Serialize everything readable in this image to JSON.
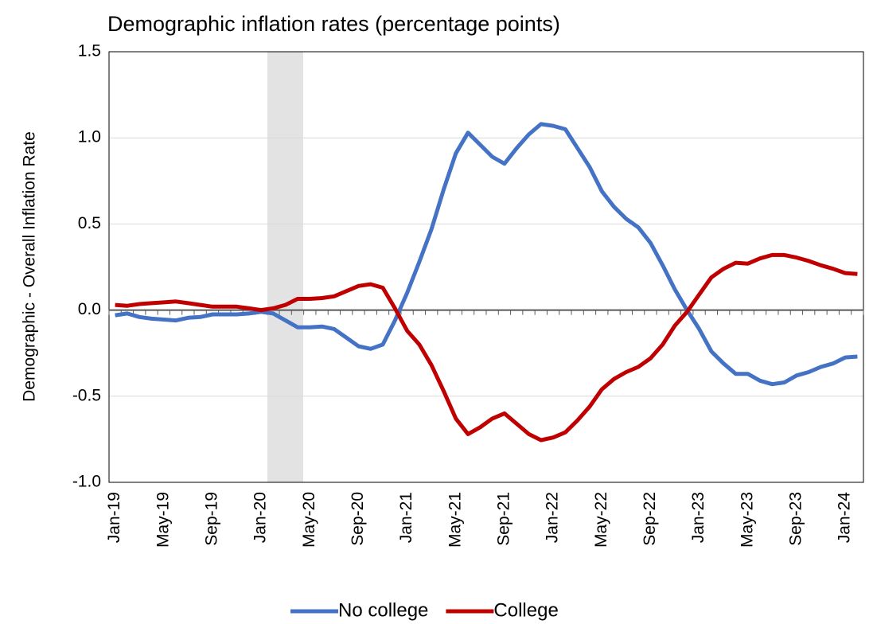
{
  "chart_data": {
    "type": "line",
    "title": "Demographic inflation rates (percentage points)",
    "y_label": "Demographic - Overall Inflation Rate",
    "categories": [
      "Jan-19",
      null,
      null,
      null,
      "May-19",
      null,
      null,
      null,
      "Sep-19",
      null,
      null,
      null,
      "Jan-20",
      null,
      null,
      null,
      "May-20",
      null,
      null,
      null,
      "Sep-20",
      null,
      null,
      null,
      "Jan-21",
      null,
      null,
      null,
      "May-21",
      null,
      null,
      null,
      "Sep-21",
      null,
      null,
      null,
      "Jan-22",
      null,
      null,
      null,
      "May-22",
      null,
      null,
      null,
      "Sep-22",
      null,
      null,
      null,
      "Jan-23",
      null,
      null,
      null,
      "May-23",
      null,
      null,
      null,
      "Sep-23",
      null,
      null,
      null,
      "Jan-24",
      null
    ],
    "series": [
      {
        "name": "No college",
        "color": "#4472c4",
        "values": [
          -0.03,
          -0.02,
          -0.04,
          -0.05,
          -0.055,
          -0.06,
          -0.045,
          -0.04,
          -0.025,
          -0.025,
          -0.025,
          -0.02,
          -0.01,
          -0.02,
          -0.06,
          -0.1,
          -0.1,
          -0.095,
          -0.11,
          -0.16,
          -0.21,
          -0.225,
          -0.2,
          -0.06,
          0.1,
          0.28,
          0.47,
          0.7,
          0.91,
          1.03,
          0.96,
          0.89,
          0.85,
          0.94,
          1.02,
          1.08,
          1.07,
          1.05,
          0.94,
          0.83,
          0.69,
          0.6,
          0.53,
          0.48,
          0.39,
          0.26,
          0.12,
          0.0,
          -0.11,
          -0.24,
          -0.31,
          -0.37,
          -0.37,
          -0.41,
          -0.43,
          -0.42,
          -0.38,
          -0.36,
          -0.33,
          -0.31,
          -0.275,
          -0.27
        ]
      },
      {
        "name": "College",
        "color": "#c00000",
        "values": [
          0.03,
          0.025,
          0.035,
          0.04,
          0.045,
          0.05,
          0.04,
          0.03,
          0.02,
          0.02,
          0.02,
          0.01,
          0.0,
          0.01,
          0.03,
          0.065,
          0.065,
          0.07,
          0.08,
          0.11,
          0.14,
          0.15,
          0.13,
          0.01,
          -0.12,
          -0.2,
          -0.32,
          -0.47,
          -0.63,
          -0.72,
          -0.68,
          -0.63,
          -0.6,
          -0.66,
          -0.72,
          -0.755,
          -0.74,
          -0.71,
          -0.64,
          -0.56,
          -0.46,
          -0.4,
          -0.36,
          -0.33,
          -0.28,
          -0.2,
          -0.09,
          -0.01,
          0.09,
          0.19,
          0.24,
          0.275,
          0.27,
          0.3,
          0.32,
          0.32,
          0.305,
          0.285,
          0.26,
          0.24,
          0.215,
          0.21
        ]
      }
    ],
    "ylim": [
      -1,
      1.5
    ],
    "yticks": [
      {
        "value": -1,
        "label": "-1.0"
      },
      -0.5,
      {
        "value": 0,
        "label": "0.0"
      },
      0.5,
      {
        "value": 1,
        "label": "1.0"
      },
      1.5
    ],
    "grid": true
  }
}
